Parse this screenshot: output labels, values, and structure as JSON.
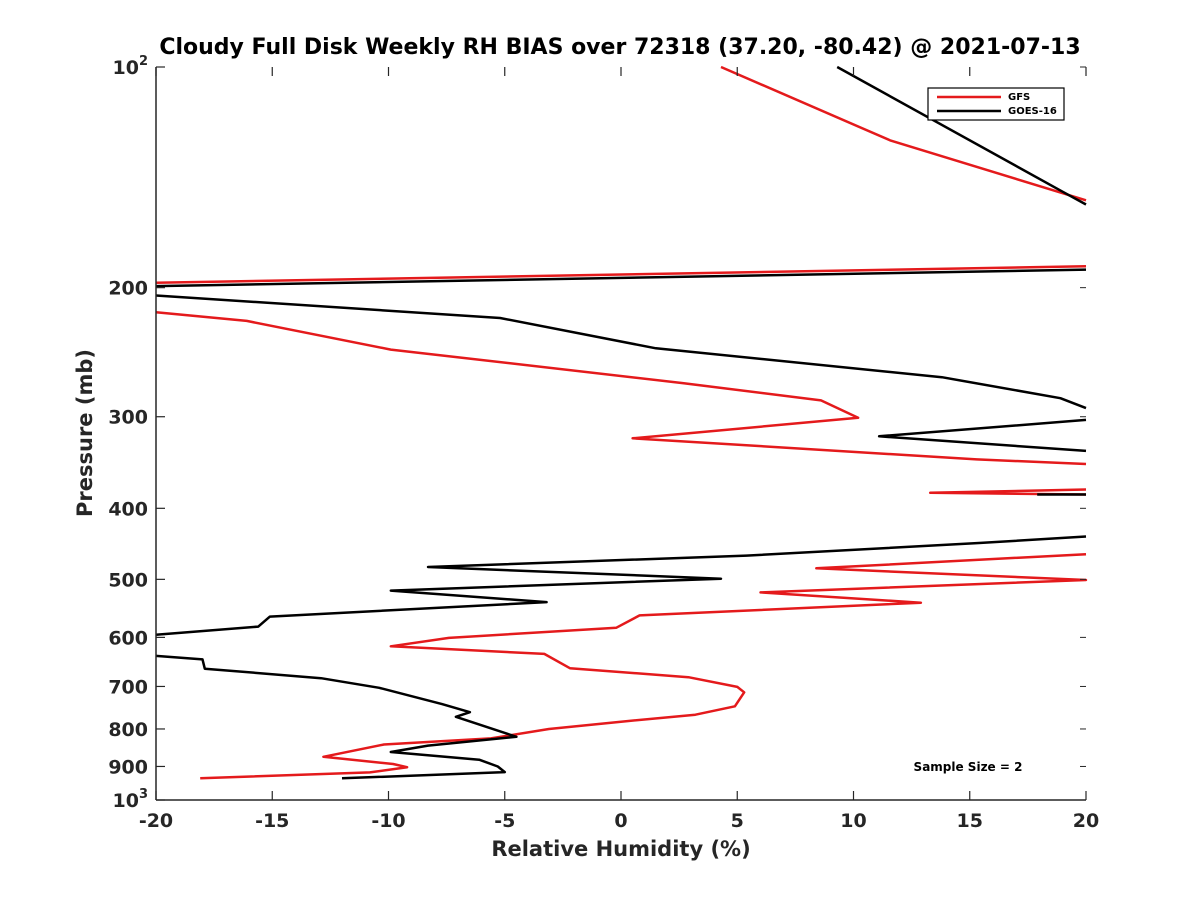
{
  "chart_data": {
    "type": "line",
    "title": "Cloudy Full Disk Weekly RH BIAS over 72318 (37.20, -80.42) @ 2021-07-13",
    "xlabel": "Relative Humidity (%)",
    "ylabel": "Pressure (mb)",
    "xlim": [
      -20,
      20
    ],
    "ylim": [
      100,
      1000
    ],
    "yscale": "log",
    "y_reversed": true,
    "xticks": [
      -20,
      -15,
      -10,
      -5,
      0,
      5,
      10,
      15,
      20
    ],
    "xtick_labels": [
      "-20",
      "-15",
      "-10",
      "-5",
      "0",
      "5",
      "10",
      "15",
      "20"
    ],
    "yticks": [
      {
        "value": 200,
        "label": "200"
      },
      {
        "value": 300,
        "label": "300"
      },
      {
        "value": 400,
        "label": "400"
      },
      {
        "value": 500,
        "label": "500"
      },
      {
        "value": 600,
        "label": "600"
      },
      {
        "value": 700,
        "label": "700"
      },
      {
        "value": 800,
        "label": "800"
      },
      {
        "value": 900,
        "label": "900"
      }
    ],
    "ytick_top": {
      "base": "10",
      "exp": "2"
    },
    "ytick_bottom": {
      "base": "10",
      "exp": "3"
    },
    "legend": {
      "position": "top-right",
      "entries": [
        "GFS",
        "GOES-16"
      ]
    },
    "annotation": "Sample Size = 2",
    "series": [
      {
        "name": "GFS",
        "color": "#e41a1c",
        "points": [
          [
            4.3,
            100
          ],
          [
            11.6,
            126
          ],
          [
            20.0,
            152
          ],
          null,
          [
            20.0,
            187
          ],
          [
            -20.0,
            197
          ],
          null,
          [
            -20.0,
            216
          ],
          [
            -16.1,
            222
          ],
          [
            -9.9,
            243
          ],
          [
            2.7,
            270
          ],
          [
            8.6,
            285
          ],
          [
            10.2,
            301
          ],
          [
            0.5,
            321
          ],
          [
            15.3,
            343
          ],
          [
            20.0,
            348
          ],
          null,
          [
            20.0,
            377
          ],
          [
            13.3,
            381
          ],
          [
            20.0,
            383
          ],
          null,
          [
            20.0,
            462
          ],
          [
            8.4,
            483
          ],
          [
            20.0,
            501
          ],
          [
            6.0,
            521
          ],
          [
            12.9,
            538
          ],
          [
            0.8,
            560
          ],
          [
            -0.2,
            582
          ],
          [
            -7.4,
            601
          ],
          [
            -9.9,
            617
          ],
          [
            -3.3,
            632
          ],
          [
            -2.2,
            661
          ],
          [
            2.9,
            680
          ],
          [
            5.0,
            701
          ],
          [
            5.3,
            713
          ],
          [
            4.9,
            745
          ],
          [
            3.2,
            765
          ],
          [
            0.0,
            782
          ],
          [
            -3.1,
            800
          ],
          [
            -5.6,
            824
          ],
          [
            -10.2,
            840
          ],
          [
            -12.8,
            873
          ],
          [
            -9.8,
            893
          ],
          [
            -9.2,
            902
          ],
          [
            -10.8,
            917
          ],
          [
            -18.1,
            934
          ]
        ]
      },
      {
        "name": "GOES-16",
        "color": "#000000",
        "points": [
          [
            9.3,
            100
          ],
          [
            19.0,
            148
          ],
          [
            20.0,
            154
          ],
          null,
          [
            20.0,
            189
          ],
          [
            -20.0,
            199
          ],
          null,
          [
            -20.0,
            205
          ],
          [
            -5.2,
            220
          ],
          [
            1.5,
            242
          ],
          [
            13.8,
            265
          ],
          [
            18.9,
            283
          ],
          [
            20.0,
            292
          ],
          null,
          [
            20.0,
            303
          ],
          [
            11.1,
            319
          ],
          [
            20.0,
            334
          ],
          null,
          [
            20.0,
            383
          ],
          [
            17.9,
            383
          ],
          null,
          [
            20.0,
            437
          ],
          [
            15.4,
            446
          ],
          [
            5.4,
            464
          ],
          [
            -8.3,
            481
          ],
          [
            4.3,
            499
          ],
          [
            -9.9,
            518
          ],
          [
            -3.2,
            537
          ],
          [
            -15.1,
            562
          ],
          [
            -15.6,
            580
          ],
          [
            -20.0,
            595
          ],
          null,
          [
            -20.0,
            636
          ],
          [
            -18.0,
            643
          ],
          [
            -17.9,
            662
          ],
          [
            -12.9,
            682
          ],
          [
            -10.4,
            703
          ],
          [
            -7.7,
            740
          ],
          [
            -6.5,
            759
          ],
          [
            -7.1,
            770
          ],
          [
            -4.5,
            820
          ],
          [
            -8.3,
            843
          ],
          [
            -9.9,
            860
          ],
          [
            -6.1,
            881
          ],
          [
            -5.3,
            900
          ],
          [
            -5.0,
            916
          ],
          [
            -12.0,
            934
          ]
        ]
      }
    ]
  }
}
